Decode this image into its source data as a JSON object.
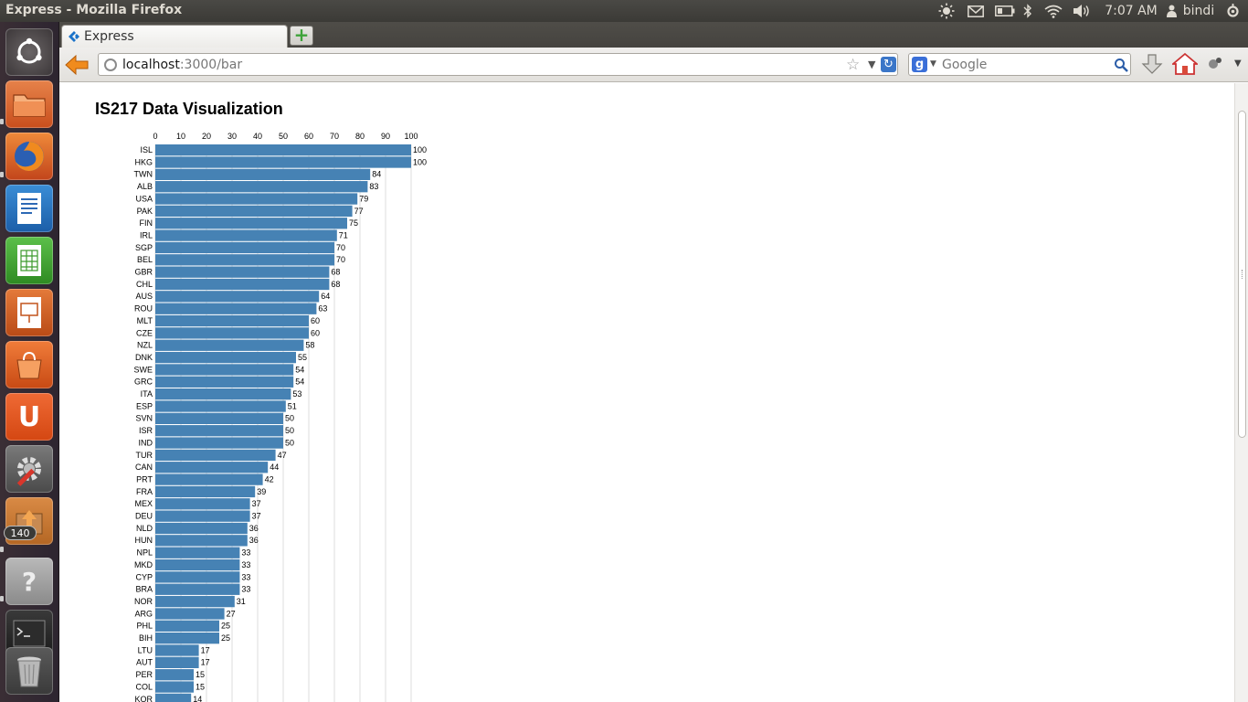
{
  "window": {
    "title": "Express - Mozilla Firefox"
  },
  "panel": {
    "time": "7:07 AM",
    "user": "bindi"
  },
  "launcher": {
    "badge_count": "140"
  },
  "browser": {
    "tab_title": "Express",
    "url_host": "localhost",
    "url_rest": ":3000/bar",
    "search_engine_letter": "g",
    "search_placeholder": "Google"
  },
  "page": {
    "title": "IS217 Data Visualization"
  },
  "colors": {
    "bar": "#4682b4",
    "grid": "#dddddd",
    "panel": "#3f3e3a",
    "launcher": "#33282f"
  },
  "chart_data": {
    "type": "bar",
    "orientation": "horizontal",
    "title": "",
    "xlabel": "",
    "ylabel": "",
    "x_ticks": [
      "0",
      "10",
      "20",
      "30",
      "40",
      "50",
      "60",
      "70",
      "80",
      "90",
      "100"
    ],
    "xlim": [
      0,
      100
    ],
    "grid": true,
    "categories": [
      "ISL",
      "HKG",
      "TWN",
      "ALB",
      "USA",
      "PAK",
      "FIN",
      "IRL",
      "SGP",
      "BEL",
      "GBR",
      "CHL",
      "AUS",
      "ROU",
      "MLT",
      "CZE",
      "NZL",
      "DNK",
      "SWE",
      "GRC",
      "ITA",
      "ESP",
      "SVN",
      "ISR",
      "IND",
      "TUR",
      "CAN",
      "PRT",
      "FRA",
      "MEX",
      "DEU",
      "NLD",
      "HUN",
      "NPL",
      "MKD",
      "CYP",
      "BRA",
      "NOR",
      "ARG",
      "PHL",
      "BIH",
      "LTU",
      "AUT",
      "PER",
      "COL",
      "KOR"
    ],
    "values": [
      100,
      100,
      84,
      83,
      79,
      77,
      75,
      71,
      70,
      70,
      68,
      68,
      64,
      63,
      60,
      60,
      58,
      55,
      54,
      54,
      53,
      51,
      50,
      50,
      50,
      47,
      44,
      42,
      39,
      37,
      37,
      36,
      36,
      33,
      33,
      33,
      33,
      31,
      27,
      25,
      25,
      17,
      17,
      15,
      15,
      14
    ]
  }
}
